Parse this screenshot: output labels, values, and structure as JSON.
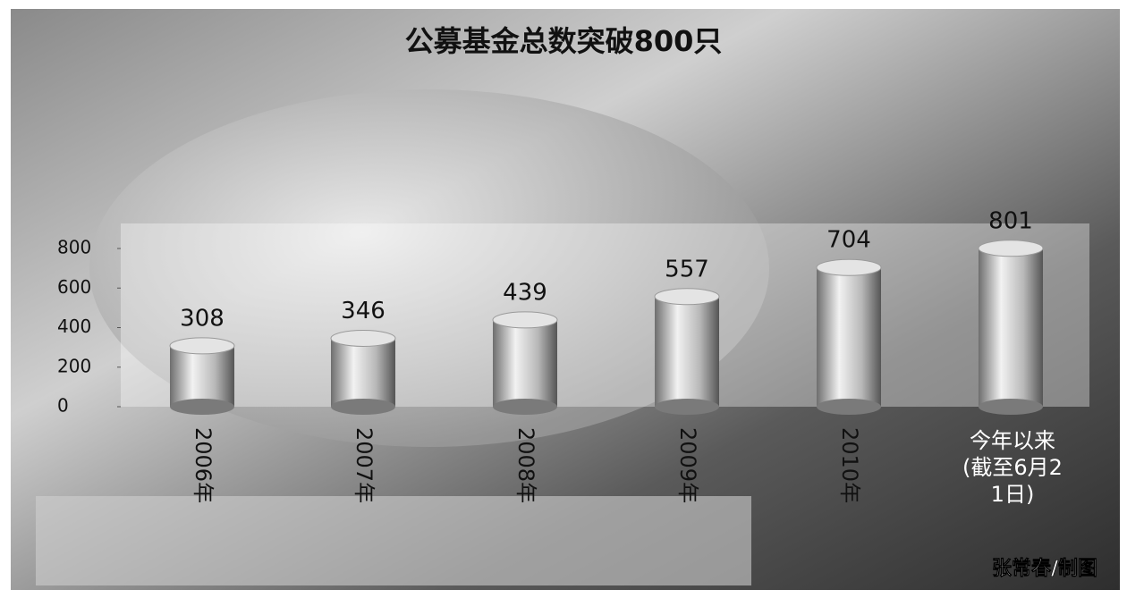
{
  "chart_data": {
    "type": "bar",
    "title": "公募基金总数突破800只",
    "categories": [
      "2006年",
      "2007年",
      "2008年",
      "2009年",
      "2010年",
      "今年以来(截至6月21日)"
    ],
    "values": [
      308,
      346,
      439,
      557,
      704,
      801
    ],
    "ylim": [
      0,
      800
    ],
    "yticks": [
      0,
      200,
      400,
      600,
      800
    ],
    "color": "#9a9a9a",
    "credit": "张常春/制图"
  }
}
